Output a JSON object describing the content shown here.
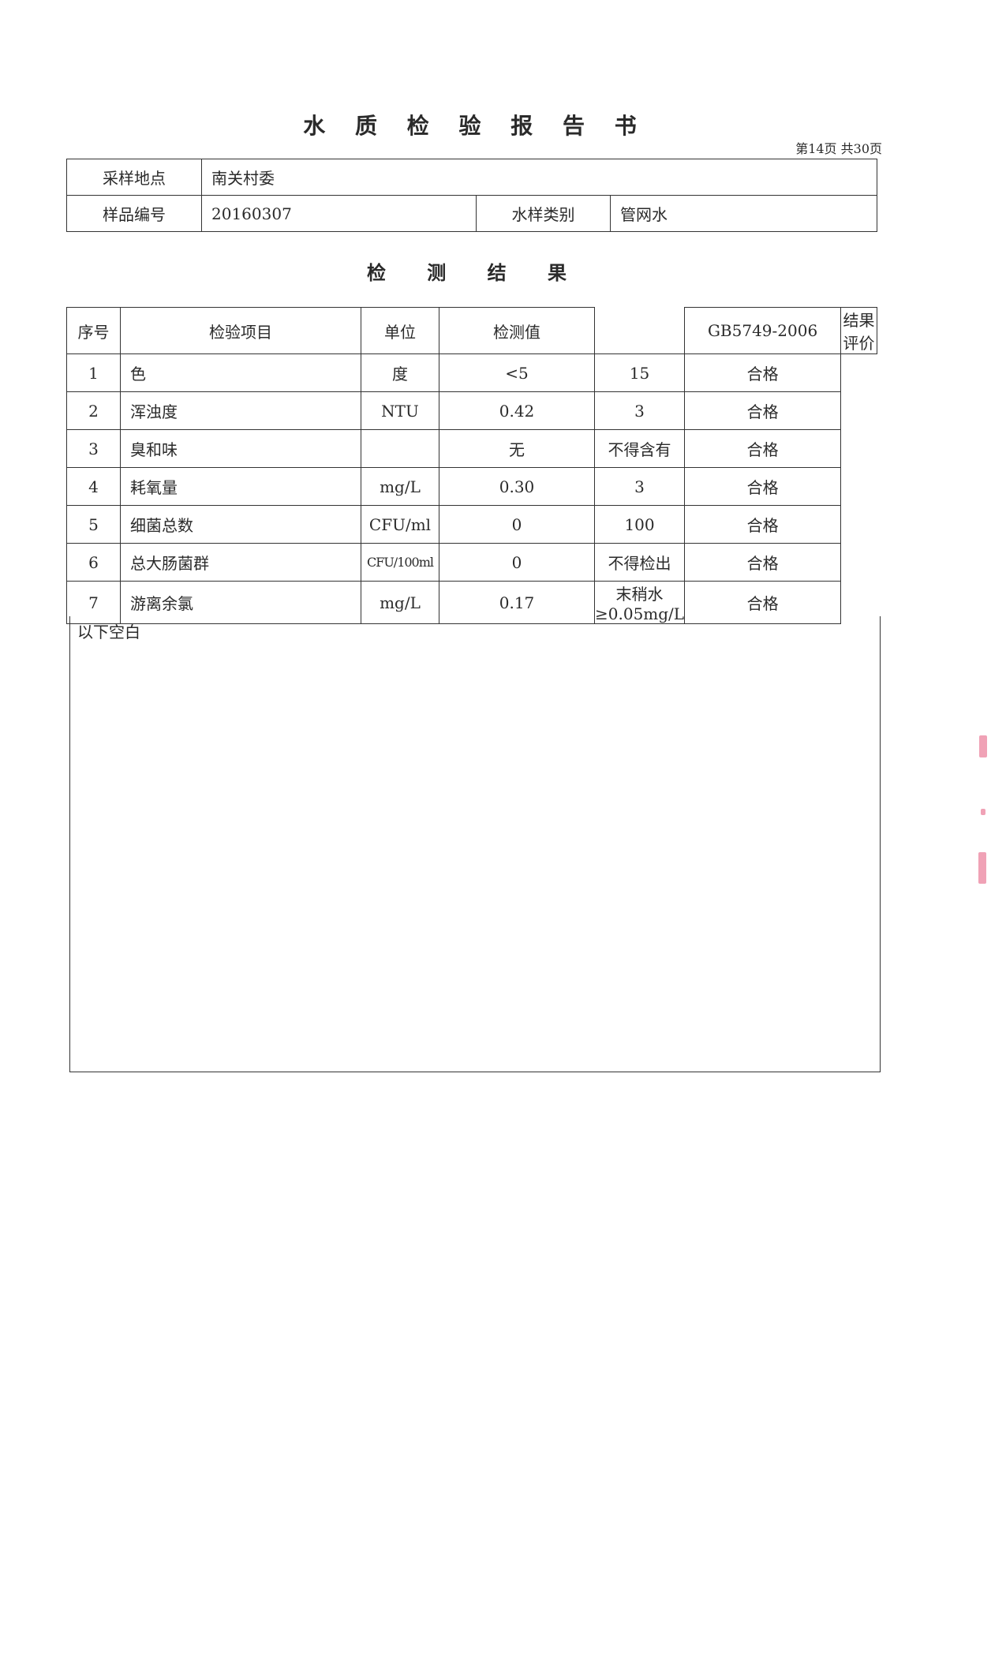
{
  "title": "水 质 检 验 报 告 书",
  "page_info": "第14页  共30页",
  "info": {
    "location_label": "采样地点",
    "location": "南关村委",
    "sample_no_label": "样品编号",
    "sample_no": "20160307",
    "water_type_label": "水样类别",
    "water_type": "管网水"
  },
  "subtitle": "检 测 结 果",
  "results": {
    "headers": [
      "序号",
      "检验项目",
      "单位",
      "检测值",
      "GB5749-2006",
      "结果评价"
    ],
    "rows": [
      {
        "no": "1",
        "item": "色",
        "unit": "度",
        "value": "<5",
        "standard": "15",
        "verdict": "合格"
      },
      {
        "no": "2",
        "item": "浑浊度",
        "unit": "NTU",
        "value": "0.42",
        "standard": "3",
        "verdict": "合格"
      },
      {
        "no": "3",
        "item": "臭和味",
        "unit": "",
        "value": "无",
        "standard": "不得含有",
        "verdict": "合格"
      },
      {
        "no": "4",
        "item": "耗氧量",
        "unit": "mg/L",
        "value": "0.30",
        "standard": "3",
        "verdict": "合格"
      },
      {
        "no": "5",
        "item": "细菌总数",
        "unit": "CFU/ml",
        "value": "0",
        "standard": "100",
        "verdict": "合格"
      },
      {
        "no": "6",
        "item": "总大肠菌群",
        "unit": "CFU/100ml",
        "value": "0",
        "standard": "不得检出",
        "verdict": "合格"
      },
      {
        "no": "7",
        "item": "游离余氯",
        "unit": "mg/L",
        "value": "0.17",
        "standard": "末稍水≥0.05mg/L",
        "verdict": "合格"
      }
    ],
    "blank_note": "以下空白"
  }
}
